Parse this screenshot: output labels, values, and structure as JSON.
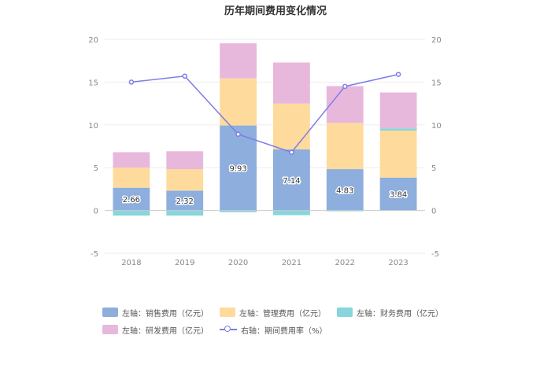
{
  "chart_data": {
    "type": "bar",
    "title": "历年期间费用变化情况",
    "categories": [
      "2018",
      "2019",
      "2020",
      "2021",
      "2022",
      "2023"
    ],
    "left_axis": {
      "ylim": [
        -5,
        20
      ],
      "ticks": [
        -5,
        0,
        5,
        10,
        15,
        20
      ]
    },
    "right_axis": {
      "ylim": [
        -5,
        20
      ],
      "ticks": [
        -5,
        0,
        5,
        10,
        15,
        20
      ]
    },
    "series": [
      {
        "name": "左轴：销售费用（亿元）",
        "axis": "left",
        "kind": "bar",
        "color": "#8eaedd",
        "values": [
          2.66,
          2.32,
          9.93,
          7.14,
          4.83,
          3.84
        ],
        "show_labels": true
      },
      {
        "name": "左轴：管理费用（亿元）",
        "axis": "left",
        "kind": "bar",
        "color": "#fedb9c",
        "values": [
          2.35,
          2.5,
          5.5,
          5.35,
          5.4,
          5.5
        ],
        "show_labels": false
      },
      {
        "name": "左轴：财务费用（亿元）",
        "axis": "left",
        "kind": "bar",
        "color": "#86d6dc",
        "values": [
          -0.6,
          -0.6,
          -0.2,
          -0.55,
          -0.1,
          0.25
        ],
        "show_labels": false
      },
      {
        "name": "左轴：研发费用（亿元）",
        "axis": "left",
        "kind": "bar",
        "color": "#e8b8dc",
        "values": [
          1.8,
          2.1,
          4.1,
          4.8,
          4.3,
          4.2
        ],
        "show_labels": false
      },
      {
        "name": "右轴：期间费用率（%）",
        "axis": "right",
        "kind": "line",
        "color": "#7b7ee8",
        "values": [
          15.0,
          15.7,
          8.9,
          6.8,
          14.5,
          15.9
        ],
        "show_labels": false
      }
    ]
  }
}
